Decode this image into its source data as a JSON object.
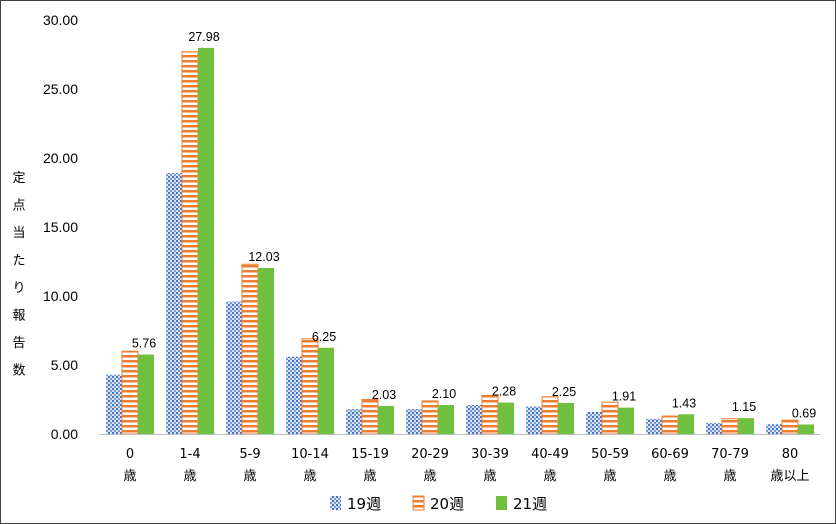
{
  "chart_data": {
    "type": "bar",
    "ylabel_chars": [
      "定",
      "点",
      "当",
      "た",
      "り",
      "報",
      "告",
      "数"
    ],
    "ylim": [
      0,
      30
    ],
    "yticks": [
      "0.00",
      "5.00",
      "10.00",
      "15.00",
      "20.00",
      "25.00",
      "30.00"
    ],
    "categories": [
      {
        "line1": "0",
        "line2": "歳"
      },
      {
        "line1": "1-4",
        "line2": "歳"
      },
      {
        "line1": "5-9",
        "line2": "歳"
      },
      {
        "line1": "10-14",
        "line2": "歳"
      },
      {
        "line1": "15-19",
        "line2": "歳"
      },
      {
        "line1": "20-29",
        "line2": "歳"
      },
      {
        "line1": "30-39",
        "line2": "歳"
      },
      {
        "line1": "40-49",
        "line2": "歳"
      },
      {
        "line1": "50-59",
        "line2": "歳"
      },
      {
        "line1": "60-69",
        "line2": "歳"
      },
      {
        "line1": "70-79",
        "line2": "歳"
      },
      {
        "line1": "80",
        "line2": "歳以上"
      }
    ],
    "series": [
      {
        "name": "19週",
        "color": "#4472C4",
        "pattern": "dots",
        "values": [
          4.3,
          18.9,
          9.6,
          5.6,
          1.8,
          1.8,
          2.1,
          2.0,
          1.6,
          1.1,
          0.8,
          0.7
        ]
      },
      {
        "name": "20週",
        "color": "#ED7D31",
        "pattern": "hstripes",
        "values": [
          6.0,
          27.7,
          12.3,
          6.9,
          2.5,
          2.4,
          2.8,
          2.7,
          2.3,
          1.3,
          1.1,
          1.0
        ]
      },
      {
        "name": "21週",
        "color": "#70C040",
        "pattern": "solid",
        "values": [
          5.76,
          27.98,
          12.03,
          6.25,
          2.03,
          2.1,
          2.28,
          2.25,
          1.91,
          1.43,
          1.15,
          0.69
        ],
        "labels": [
          "5.76",
          "27.98",
          "12.03",
          "6.25",
          "2.03",
          "2.10",
          "2.28",
          "2.25",
          "1.91",
          "1.43",
          "1.15",
          "0.69"
        ]
      }
    ],
    "grid": false,
    "legend": "bottom"
  }
}
